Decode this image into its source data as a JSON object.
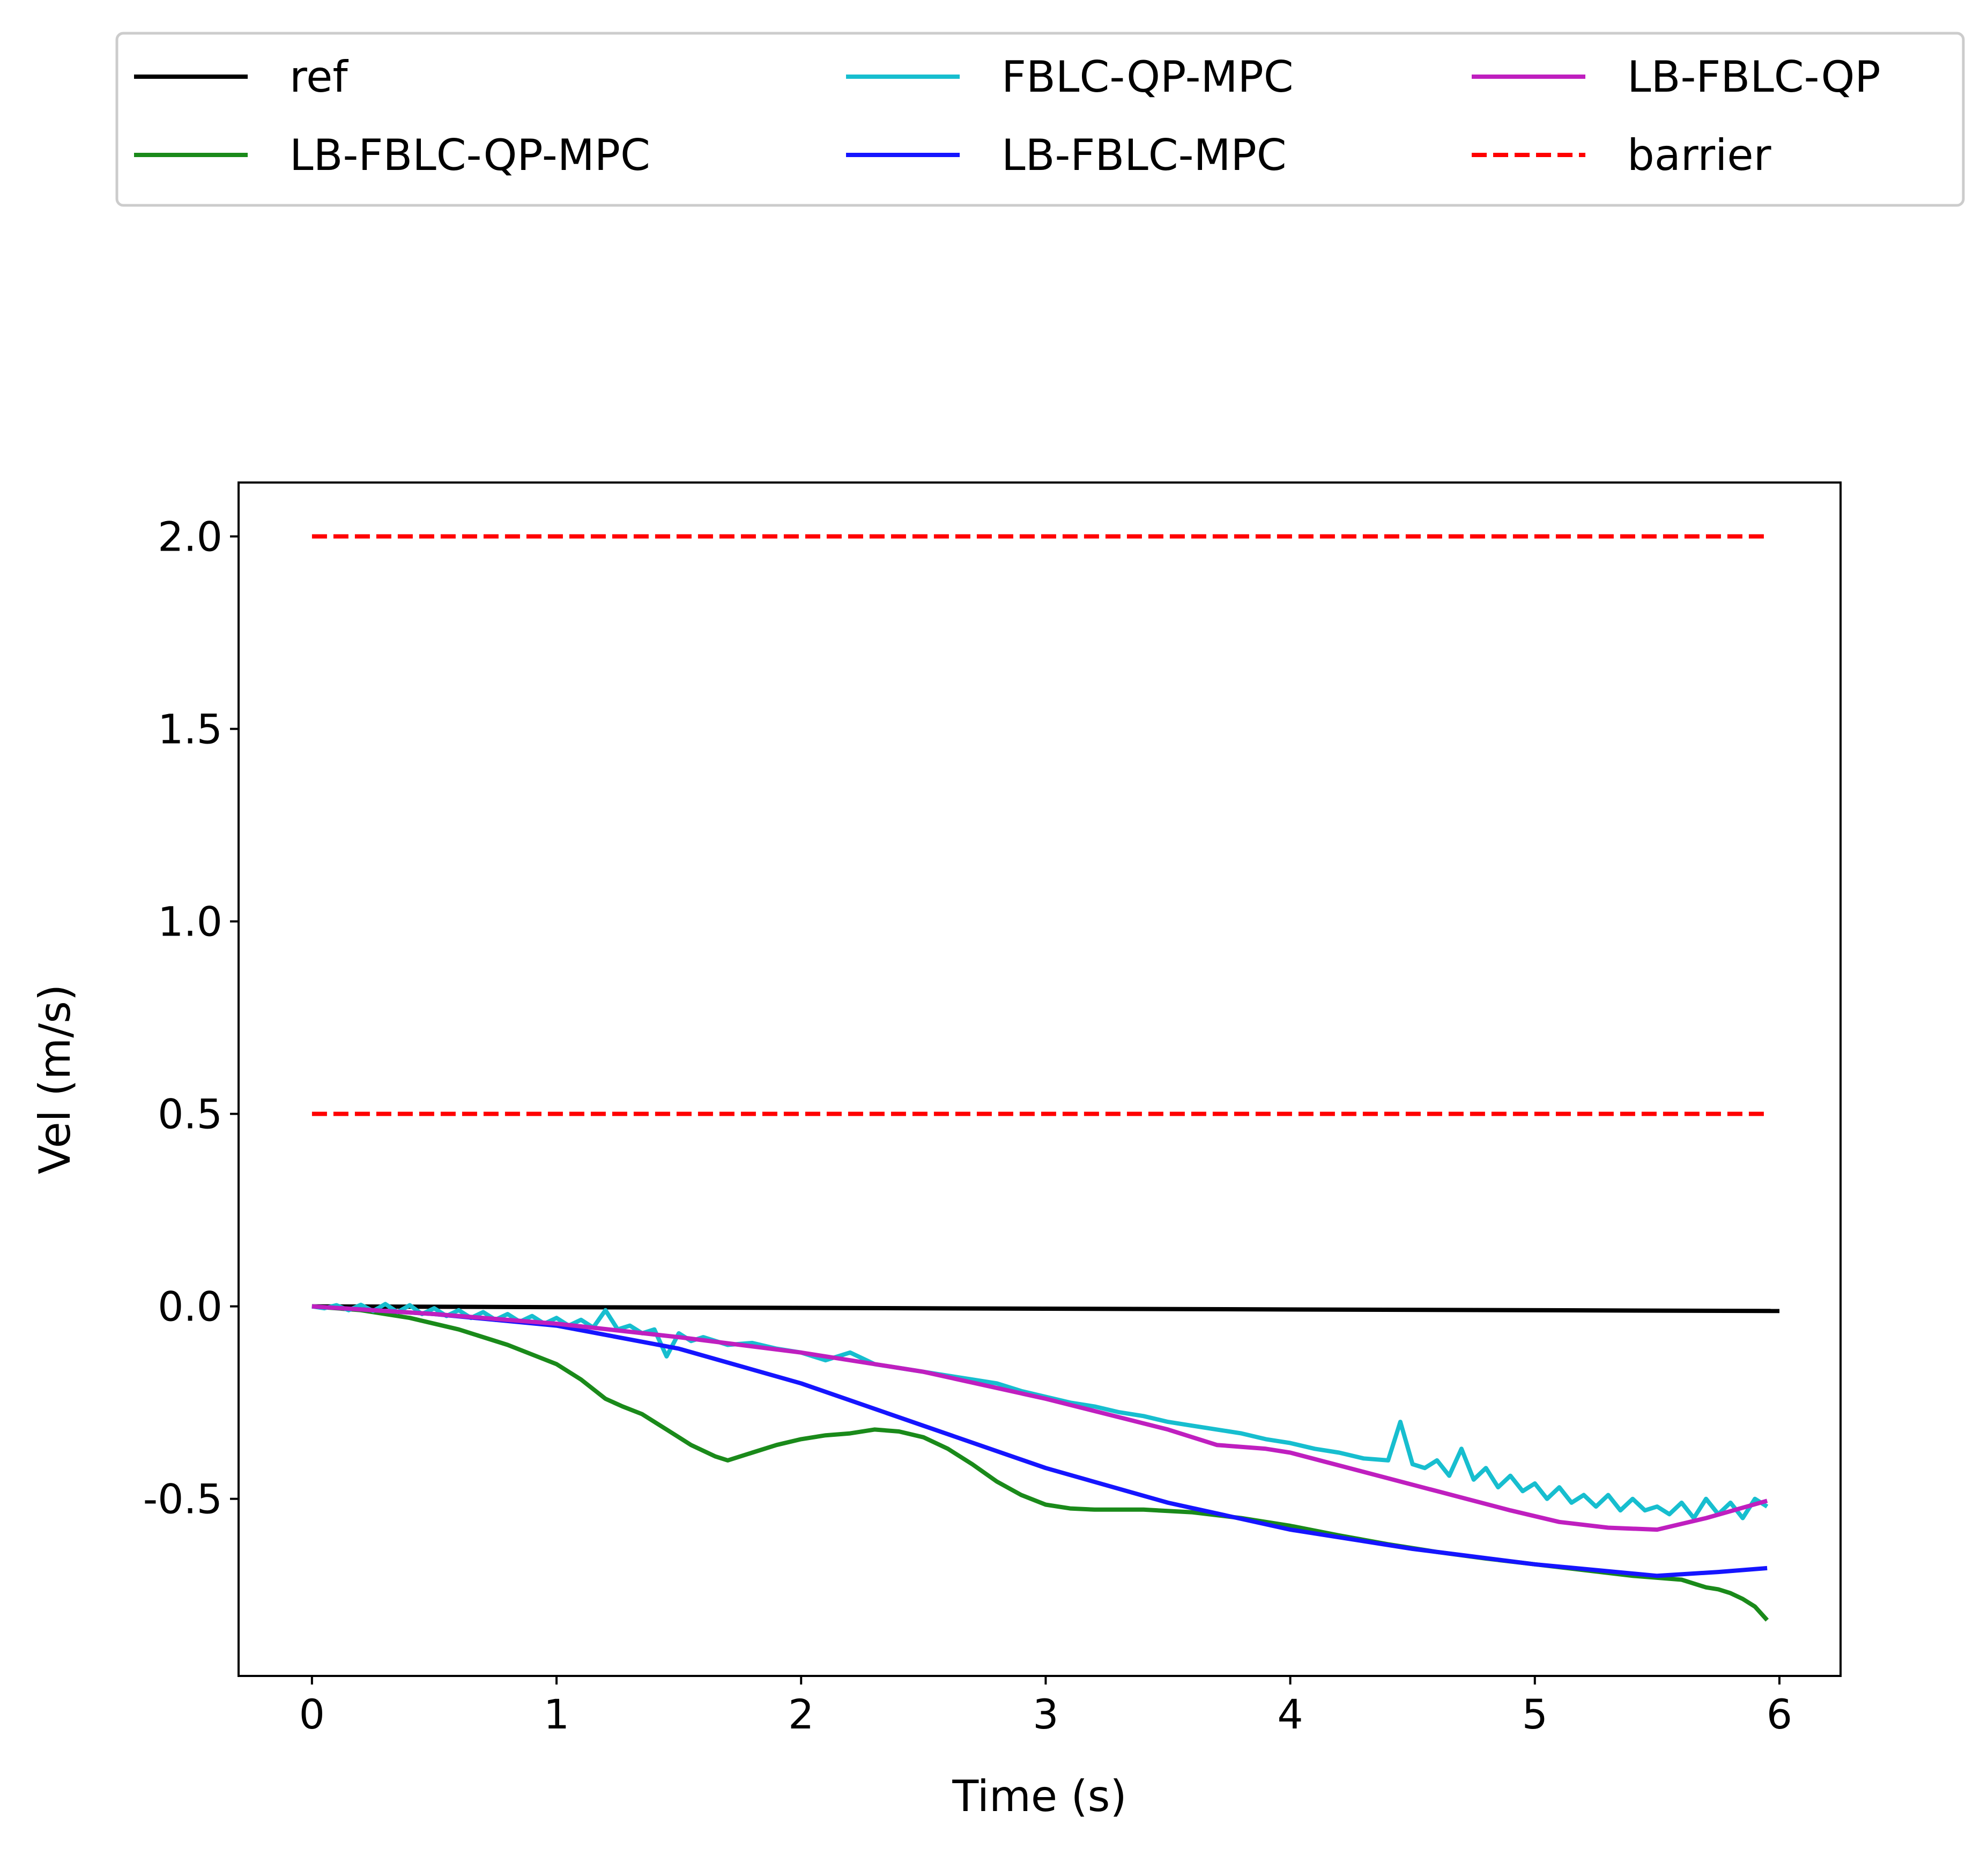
{
  "chart_data": {
    "type": "line",
    "title": "",
    "xlabel": "Time (s)",
    "ylabel": "Vel (m/s)",
    "xlim": [
      -0.3,
      6.25
    ],
    "ylim": [
      -0.96,
      2.14
    ],
    "xticks": [
      0,
      1,
      2,
      3,
      4,
      5,
      6
    ],
    "xtick_labels": [
      "0",
      "1",
      "2",
      "3",
      "4",
      "5",
      "6"
    ],
    "yticks": [
      -0.5,
      0.0,
      0.5,
      1.0,
      1.5,
      2.0
    ],
    "ytick_labels": [
      "-0.5",
      "0.0",
      "0.5",
      "1.0",
      "1.5",
      "2.0"
    ],
    "grid": false,
    "legend_position": "top (outside plot, 3 columns)",
    "series": [
      {
        "name": "ref",
        "color": "#000000",
        "style": "solid",
        "x": [
          0,
          6
        ],
        "y": [
          0.0,
          -0.012
        ]
      },
      {
        "name": "LB-FBLC-QP-MPC",
        "color": "#1a8a1a",
        "style": "solid",
        "x": [
          0,
          0.2,
          0.4,
          0.6,
          0.8,
          1.0,
          1.1,
          1.2,
          1.27,
          1.35,
          1.45,
          1.55,
          1.65,
          1.7,
          1.8,
          1.9,
          2.0,
          2.1,
          2.2,
          2.3,
          2.4,
          2.5,
          2.6,
          2.7,
          2.8,
          2.9,
          3.0,
          3.1,
          3.2,
          3.4,
          3.6,
          3.8,
          4.0,
          4.2,
          4.4,
          4.6,
          4.8,
          5.0,
          5.2,
          5.4,
          5.6,
          5.65,
          5.7,
          5.75,
          5.8,
          5.85,
          5.9,
          5.95
        ],
        "y": [
          0.0,
          -0.01,
          -0.03,
          -0.06,
          -0.1,
          -0.15,
          -0.19,
          -0.24,
          -0.26,
          -0.28,
          -0.32,
          -0.36,
          -0.39,
          -0.4,
          -0.38,
          -0.36,
          -0.345,
          -0.335,
          -0.33,
          -0.32,
          -0.325,
          -0.34,
          -0.37,
          -0.41,
          -0.455,
          -0.49,
          -0.515,
          -0.525,
          -0.528,
          -0.528,
          -0.535,
          -0.55,
          -0.57,
          -0.595,
          -0.618,
          -0.638,
          -0.655,
          -0.67,
          -0.685,
          -0.7,
          -0.71,
          -0.72,
          -0.73,
          -0.735,
          -0.745,
          -0.76,
          -0.78,
          -0.815
        ]
      },
      {
        "name": "FBLC-QP-MPC",
        "color": "#17becf",
        "style": "solid",
        "x": [
          0,
          0.05,
          0.1,
          0.15,
          0.2,
          0.25,
          0.3,
          0.35,
          0.4,
          0.45,
          0.5,
          0.55,
          0.6,
          0.65,
          0.7,
          0.75,
          0.8,
          0.85,
          0.9,
          0.95,
          1.0,
          1.05,
          1.1,
          1.15,
          1.2,
          1.25,
          1.3,
          1.35,
          1.4,
          1.45,
          1.5,
          1.55,
          1.6,
          1.7,
          1.8,
          1.9,
          2.0,
          2.1,
          2.2,
          2.3,
          2.4,
          2.5,
          2.6,
          2.7,
          2.8,
          2.9,
          3.0,
          3.1,
          3.2,
          3.3,
          3.4,
          3.5,
          3.6,
          3.7,
          3.8,
          3.9,
          4.0,
          4.1,
          4.2,
          4.3,
          4.4,
          4.45,
          4.5,
          4.55,
          4.6,
          4.65,
          4.7,
          4.75,
          4.8,
          4.85,
          4.9,
          4.95,
          5.0,
          5.05,
          5.1,
          5.15,
          5.2,
          5.25,
          5.3,
          5.35,
          5.4,
          5.45,
          5.5,
          5.55,
          5.6,
          5.65,
          5.7,
          5.75,
          5.8,
          5.85,
          5.9,
          5.95
        ],
        "y": [
          0.0,
          -0.005,
          0.003,
          -0.01,
          0.004,
          -0.012,
          0.006,
          -0.015,
          0.003,
          -0.02,
          -0.005,
          -0.025,
          -0.01,
          -0.03,
          -0.015,
          -0.035,
          -0.02,
          -0.04,
          -0.025,
          -0.045,
          -0.03,
          -0.05,
          -0.035,
          -0.055,
          -0.01,
          -0.06,
          -0.05,
          -0.07,
          -0.06,
          -0.13,
          -0.07,
          -0.09,
          -0.08,
          -0.1,
          -0.095,
          -0.11,
          -0.12,
          -0.14,
          -0.12,
          -0.15,
          -0.16,
          -0.17,
          -0.18,
          -0.19,
          -0.2,
          -0.22,
          -0.235,
          -0.25,
          -0.26,
          -0.275,
          -0.285,
          -0.3,
          -0.31,
          -0.32,
          -0.33,
          -0.345,
          -0.355,
          -0.37,
          -0.38,
          -0.395,
          -0.4,
          -0.3,
          -0.41,
          -0.42,
          -0.4,
          -0.44,
          -0.37,
          -0.45,
          -0.42,
          -0.47,
          -0.44,
          -0.48,
          -0.46,
          -0.5,
          -0.47,
          -0.51,
          -0.49,
          -0.52,
          -0.49,
          -0.53,
          -0.5,
          -0.53,
          -0.52,
          -0.54,
          -0.51,
          -0.55,
          -0.5,
          -0.54,
          -0.51,
          -0.55,
          -0.5,
          -0.52
        ]
      },
      {
        "name": "LB-FBLC-MPC",
        "color": "#1515ff",
        "style": "solid",
        "x": [
          0,
          0.5,
          1.0,
          1.5,
          2.0,
          2.5,
          3.0,
          3.5,
          4.0,
          4.5,
          5.0,
          5.5,
          5.75,
          5.95
        ],
        "y": [
          0.0,
          -0.02,
          -0.05,
          -0.11,
          -0.2,
          -0.31,
          -0.42,
          -0.51,
          -0.58,
          -0.63,
          -0.67,
          -0.7,
          -0.69,
          -0.68
        ]
      },
      {
        "name": "LB-FBLC-QP",
        "color": "#bf1fbf",
        "style": "solid",
        "x": [
          0,
          0.5,
          1.0,
          1.5,
          2.0,
          2.5,
          3.0,
          3.5,
          3.7,
          3.9,
          4.0,
          4.3,
          4.6,
          4.9,
          5.1,
          5.3,
          5.5,
          5.7,
          5.95
        ],
        "y": [
          0.0,
          -0.02,
          -0.045,
          -0.08,
          -0.12,
          -0.17,
          -0.24,
          -0.32,
          -0.36,
          -0.37,
          -0.38,
          -0.43,
          -0.48,
          -0.53,
          -0.56,
          -0.575,
          -0.58,
          -0.55,
          -0.505
        ]
      },
      {
        "name": "barrier",
        "color": "#ff0000",
        "style": "dashed",
        "x": [
          0,
          5.95
        ],
        "y": [
          2.0,
          2.0
        ]
      },
      {
        "name": "barrier",
        "color": "#ff0000",
        "style": "dashed",
        "x": [
          0,
          5.95
        ],
        "y": [
          0.5,
          0.5
        ]
      }
    ],
    "legend": [
      {
        "label": "ref",
        "color": "#000000",
        "style": "solid"
      },
      {
        "label": "LB-FBLC-QP-MPC",
        "color": "#1a8a1a",
        "style": "solid"
      },
      {
        "label": "FBLC-QP-MPC",
        "color": "#17becf",
        "style": "solid"
      },
      {
        "label": "LB-FBLC-MPC",
        "color": "#1515ff",
        "style": "solid"
      },
      {
        "label": "LB-FBLC-QP",
        "color": "#bf1fbf",
        "style": "solid"
      },
      {
        "label": "barrier",
        "color": "#ff0000",
        "style": "dashed"
      }
    ]
  }
}
